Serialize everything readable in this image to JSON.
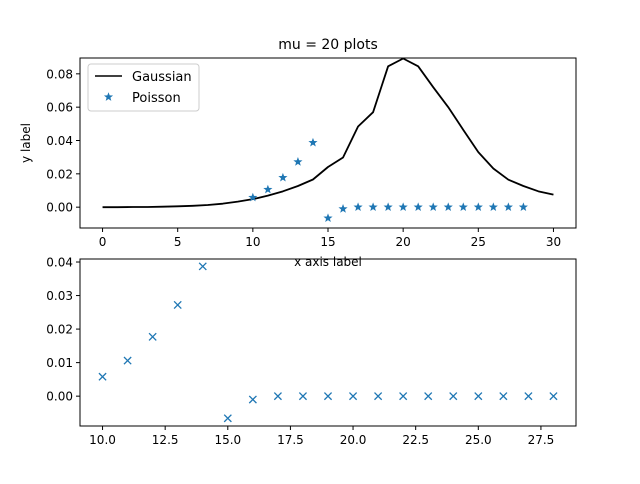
{
  "colors": {
    "line": "#000000",
    "marker": "#1f77b4",
    "axis": "#000000",
    "background": "#ffffff"
  },
  "chart_data": [
    {
      "type": "line",
      "title": "mu = 20 plots",
      "xlabel": "x axis label",
      "ylabel": "y label",
      "xlim": [
        -1.5,
        31.5
      ],
      "ylim": [
        -0.0125,
        0.0895
      ],
      "xticks": [
        0,
        5,
        10,
        15,
        20,
        25,
        30
      ],
      "xtick_labels": [
        "0",
        "5",
        "10",
        "15",
        "20",
        "25",
        "30"
      ],
      "yticks": [
        0.0,
        0.02,
        0.04,
        0.06,
        0.08
      ],
      "ytick_labels": [
        "0.00",
        "0.02",
        "0.04",
        "0.06",
        "0.08"
      ],
      "legend_position": "top-left",
      "series": [
        {
          "name": "Gaussian",
          "kind": "line",
          "x": [
            0,
            1,
            2,
            3,
            4,
            5,
            6,
            7,
            8,
            9,
            10,
            11,
            12,
            13,
            14,
            15,
            16,
            17,
            18,
            19,
            20,
            21,
            22,
            23,
            24,
            25,
            26,
            27,
            28,
            29,
            30
          ],
          "y": [
            0.0,
            0.0,
            0.0001,
            0.0001,
            0.0003,
            0.0005,
            0.0008,
            0.0013,
            0.0021,
            0.0033,
            0.0048,
            0.0069,
            0.0095,
            0.0127,
            0.0166,
            0.0241,
            0.0298,
            0.0484,
            0.057,
            0.0845,
            0.0892,
            0.0845,
            0.072,
            0.06,
            0.0464,
            0.033,
            0.0232,
            0.0165,
            0.0127,
            0.0095,
            0.0075
          ]
        },
        {
          "name": "Poisson",
          "kind": "marker-star",
          "x": [
            10,
            11,
            12,
            13,
            14,
            15,
            16,
            17,
            18,
            19,
            20,
            21,
            22,
            23,
            24,
            25,
            26,
            27,
            28
          ],
          "y": [
            0.0058,
            0.0106,
            0.0177,
            0.0272,
            0.0387,
            -0.0066,
            -0.001,
            0.0,
            0.0,
            0.0,
            0.0,
            0.0,
            0.0,
            0.0,
            0.0,
            0.0,
            0.0,
            0.0,
            0.0
          ]
        }
      ]
    },
    {
      "type": "scatter",
      "title": "",
      "xlabel": "",
      "ylabel": "",
      "xlim": [
        9.1,
        28.9
      ],
      "ylim": [
        -0.0089,
        0.0409
      ],
      "xticks": [
        10.0,
        12.5,
        15.0,
        17.5,
        20.0,
        22.5,
        25.0,
        27.5
      ],
      "xtick_labels": [
        "10.0",
        "12.5",
        "15.0",
        "17.5",
        "20.0",
        "22.5",
        "25.0",
        "27.5"
      ],
      "yticks": [
        0.0,
        0.01,
        0.02,
        0.03,
        0.04
      ],
      "ytick_labels": [
        "0.00",
        "0.01",
        "0.02",
        "0.03",
        "0.04"
      ],
      "series": [
        {
          "kind": "marker-x",
          "x": [
            10,
            11,
            12,
            13,
            14,
            15,
            16,
            17,
            18,
            19,
            20,
            21,
            22,
            23,
            24,
            25,
            26,
            27,
            28
          ],
          "y": [
            0.0058,
            0.0106,
            0.0177,
            0.0272,
            0.0387,
            -0.0066,
            -0.001,
            0.0,
            0.0,
            0.0,
            0.0,
            0.0,
            0.0,
            0.0,
            0.0,
            0.0,
            0.0,
            0.0,
            0.0
          ]
        }
      ]
    }
  ]
}
